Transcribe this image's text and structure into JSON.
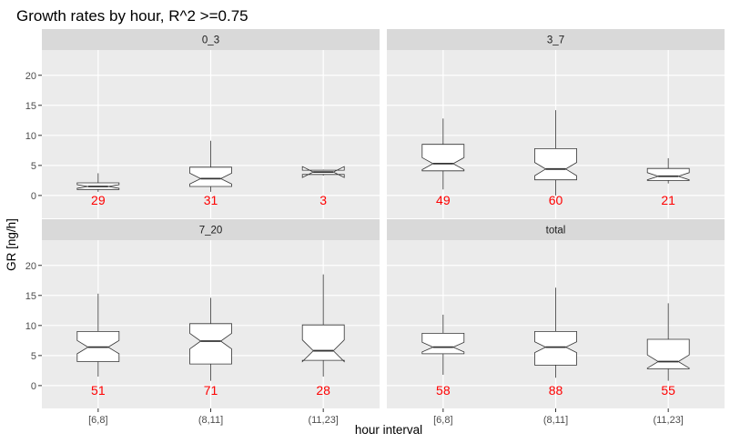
{
  "chart_data": {
    "type": "boxplot",
    "title": "Growth rates by hour, R^2 >=0.75",
    "xlabel": "hour interval",
    "ylabel": "GR [ng/h]",
    "categories": [
      "[6,8]",
      "(8,11]",
      "(11,23]"
    ],
    "y_ticks": [
      0,
      5,
      10,
      15,
      20
    ],
    "ylim": [
      -3.8,
      24.2
    ],
    "grid": true,
    "notched": true,
    "facets": [
      {
        "label": "0_3",
        "boxes": [
          {
            "category": "[6,8]",
            "min": 0.6,
            "q1": 1.0,
            "median": 1.5,
            "q3": 2.1,
            "max": 3.7,
            "notch_low": 1.2,
            "notch_high": 1.8,
            "n": "29"
          },
          {
            "category": "(8,11]",
            "min": 0.6,
            "q1": 1.5,
            "median": 2.8,
            "q3": 4.7,
            "max": 9.1,
            "notch_low": 1.9,
            "notch_high": 3.7,
            "n": "31"
          },
          {
            "category": "(11,23]",
            "min": 3.3,
            "q1": 3.5,
            "median": 3.9,
            "q3": 4.2,
            "max": 4.3,
            "notch_low": 3.0,
            "notch_high": 4.8,
            "n": "3"
          }
        ]
      },
      {
        "label": "3_7",
        "boxes": [
          {
            "category": "[6,8]",
            "min": 1.0,
            "q1": 4.1,
            "median": 5.3,
            "q3": 8.5,
            "max": 12.8,
            "notch_low": 4.3,
            "notch_high": 6.3,
            "n": "49"
          },
          {
            "category": "(8,11]",
            "min": 0.0,
            "q1": 2.6,
            "median": 4.4,
            "q3": 7.8,
            "max": 14.2,
            "notch_low": 3.3,
            "notch_high": 5.5,
            "n": "60"
          },
          {
            "category": "(11,23]",
            "min": 2.0,
            "q1": 2.5,
            "median": 3.2,
            "q3": 4.5,
            "max": 6.2,
            "notch_low": 2.6,
            "notch_high": 3.8,
            "n": "21"
          }
        ]
      },
      {
        "label": "7_20",
        "boxes": [
          {
            "category": "[6,8]",
            "min": 1.5,
            "q1": 4.0,
            "median": 6.4,
            "q3": 9.0,
            "max": 15.3,
            "notch_low": 5.3,
            "notch_high": 7.5,
            "n": "51"
          },
          {
            "category": "(8,11]",
            "min": 0.8,
            "q1": 3.6,
            "median": 7.4,
            "q3": 10.3,
            "max": 14.6,
            "notch_low": 6.1,
            "notch_high": 8.7,
            "n": "71"
          },
          {
            "category": "(11,23]",
            "min": 1.5,
            "q1": 4.2,
            "median": 5.8,
            "q3": 10.1,
            "max": 18.5,
            "notch_low": 4.0,
            "notch_high": 7.6,
            "n": "28"
          }
        ]
      },
      {
        "label": "total",
        "boxes": [
          {
            "category": "[6,8]",
            "min": 1.8,
            "q1": 5.3,
            "median": 6.4,
            "q3": 8.7,
            "max": 11.8,
            "notch_low": 5.6,
            "notch_high": 7.2,
            "n": "58"
          },
          {
            "category": "(8,11]",
            "min": 1.3,
            "q1": 3.4,
            "median": 6.4,
            "q3": 9.0,
            "max": 16.3,
            "notch_low": 5.5,
            "notch_high": 7.3,
            "n": "88"
          },
          {
            "category": "(11,23]",
            "min": 0.8,
            "q1": 2.8,
            "median": 4.0,
            "q3": 7.7,
            "max": 13.7,
            "notch_low": 2.9,
            "notch_high": 5.1,
            "n": "55"
          }
        ]
      }
    ]
  }
}
